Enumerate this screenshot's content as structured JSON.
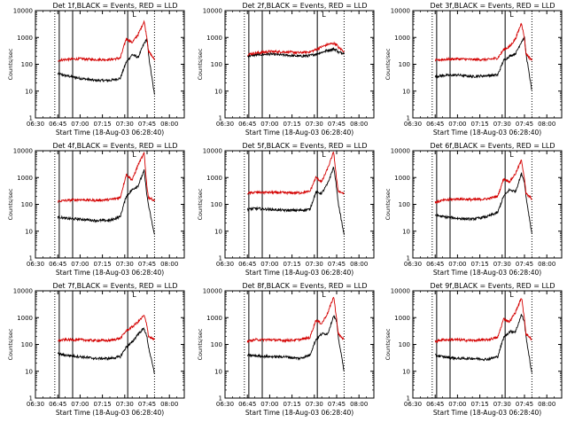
{
  "figure": {
    "background": "#ffffff"
  },
  "colors": {
    "events": "#000000",
    "lld": "#d40000",
    "axes": "#000000"
  },
  "chart_data": [
    {
      "type": "line",
      "title": "Det 1f,BLACK = Events, RED = LLD",
      "xlabel": "Start Time (18-Aug-03 06:28:40)",
      "ylabel": "Counts/sec",
      "yscale": "log",
      "ylim": [
        1,
        10000
      ],
      "xlim": [
        "06:30",
        "08:10"
      ],
      "x_tick_labels": [
        "06:30",
        "06:45",
        "07:00",
        "07:15",
        "07:30",
        "07:45",
        "08:00"
      ],
      "y_tick_labels": [
        "1",
        "10",
        "100",
        "1000",
        "10000"
      ],
      "marker_label": "L",
      "x": [
        "06:45",
        "06:50",
        "07:00",
        "07:10",
        "07:20",
        "07:27",
        "07:31",
        "07:35",
        "07:39",
        "07:43",
        "07:45",
        "07:46",
        "07:50"
      ],
      "series": [
        {
          "name": "Events",
          "color": "#000000",
          "values": [
            45,
            38,
            30,
            25,
            25,
            30,
            120,
            230,
            180,
            600,
            900,
            220,
            7
          ]
        },
        {
          "name": "LLD",
          "color": "#d40000",
          "values": [
            140,
            150,
            160,
            150,
            150,
            170,
            900,
            650,
            1300,
            4000,
            900,
            300,
            150
          ]
        }
      ]
    },
    {
      "type": "line",
      "title": "Det 2f,BLACK = Events, RED = LLD",
      "xlabel": "Start Time (18-Aug-03 06:28:40)",
      "ylabel": "Counts/sec",
      "yscale": "log",
      "ylim": [
        1,
        10000
      ],
      "xlim": [
        "06:30",
        "08:10"
      ],
      "x_tick_labels": [
        "06:30",
        "06:45",
        "07:00",
        "07:15",
        "07:30",
        "07:45",
        "08:00"
      ],
      "y_tick_labels": [
        "1",
        "10",
        "100",
        "1000",
        "10000"
      ],
      "marker_label": "L",
      "x": [
        "06:45",
        "06:50",
        "07:00",
        "07:10",
        "07:20",
        "07:27",
        "07:31",
        "07:35",
        "07:39",
        "07:43",
        "07:45",
        "07:46",
        "07:50"
      ],
      "series": [
        {
          "name": "Events",
          "color": "#000000",
          "values": [
            200,
            220,
            240,
            220,
            200,
            210,
            240,
            280,
            330,
            370,
            340,
            280,
            260
          ]
        },
        {
          "name": "LLD",
          "color": "#d40000",
          "values": [
            230,
            260,
            300,
            290,
            270,
            290,
            350,
            450,
            550,
            600,
            550,
            430,
            300
          ]
        }
      ]
    },
    {
      "type": "line",
      "title": "Det 3f,BLACK = Events, RED = LLD",
      "xlabel": "Start Time (18-Aug-03 06:28:40)",
      "ylabel": "Counts/sec",
      "yscale": "log",
      "ylim": [
        1,
        10000
      ],
      "xlim": [
        "06:30",
        "08:10"
      ],
      "x_tick_labels": [
        "06:30",
        "06:45",
        "07:00",
        "07:15",
        "07:30",
        "07:45",
        "08:00"
      ],
      "y_tick_labels": [
        "1",
        "10",
        "100",
        "1000",
        "10000"
      ],
      "marker_label": "L",
      "x": [
        "06:45",
        "06:50",
        "07:00",
        "07:10",
        "07:20",
        "07:27",
        "07:31",
        "07:35",
        "07:39",
        "07:43",
        "07:45",
        "07:46",
        "07:50"
      ],
      "series": [
        {
          "name": "Events",
          "color": "#000000",
          "values": [
            35,
            38,
            40,
            35,
            38,
            40,
            140,
            200,
            250,
            700,
            1000,
            250,
            10
          ]
        },
        {
          "name": "LLD",
          "color": "#d40000",
          "values": [
            140,
            150,
            160,
            150,
            150,
            170,
            350,
            450,
            900,
            3500,
            900,
            250,
            140
          ]
        }
      ]
    },
    {
      "type": "line",
      "title": "Det 4f,BLACK = Events, RED = LLD",
      "xlabel": "Start Time (18-Aug-03 06:28:40)",
      "ylabel": "Counts/sec",
      "yscale": "log",
      "ylim": [
        1,
        10000
      ],
      "xlim": [
        "06:30",
        "08:10"
      ],
      "x_tick_labels": [
        "06:30",
        "06:45",
        "07:00",
        "07:15",
        "07:30",
        "07:45",
        "08:00"
      ],
      "y_tick_labels": [
        "1",
        "10",
        "100",
        "1000",
        "10000"
      ],
      "marker_label": "L",
      "x": [
        "06:45",
        "06:50",
        "07:00",
        "07:10",
        "07:20",
        "07:27",
        "07:31",
        "07:35",
        "07:39",
        "07:43",
        "07:45",
        "07:46",
        "07:50"
      ],
      "series": [
        {
          "name": "Events",
          "color": "#000000",
          "values": [
            35,
            30,
            28,
            25,
            25,
            35,
            200,
            350,
            500,
            1800,
            200,
            90,
            7
          ]
        },
        {
          "name": "LLD",
          "color": "#d40000",
          "values": [
            130,
            140,
            150,
            140,
            150,
            180,
            1300,
            800,
            3000,
            8000,
            400,
            180,
            140
          ]
        }
      ]
    },
    {
      "type": "line",
      "title": "Det 5f,BLACK = Events, RED = LLD",
      "xlabel": "Start Time (18-Aug-03 06:28:40)",
      "ylabel": "Counts/sec",
      "yscale": "log",
      "ylim": [
        1,
        10000
      ],
      "xlim": [
        "06:30",
        "08:10"
      ],
      "x_tick_labels": [
        "06:30",
        "06:45",
        "07:00",
        "07:15",
        "07:30",
        "07:45",
        "08:00"
      ],
      "y_tick_labels": [
        "1",
        "10",
        "100",
        "1000",
        "10000"
      ],
      "marker_label": "L",
      "x": [
        "06:45",
        "06:50",
        "07:00",
        "07:10",
        "07:20",
        "07:27",
        "07:31",
        "07:35",
        "07:39",
        "07:43",
        "07:45",
        "07:46",
        "07:50"
      ],
      "series": [
        {
          "name": "Events",
          "color": "#000000",
          "values": [
            65,
            70,
            65,
            60,
            60,
            65,
            280,
            260,
            600,
            2500,
            400,
            120,
            7
          ]
        },
        {
          "name": "LLD",
          "color": "#d40000",
          "values": [
            260,
            280,
            280,
            270,
            270,
            300,
            1000,
            700,
            2200,
            9000,
            800,
            320,
            250
          ]
        }
      ]
    },
    {
      "type": "line",
      "title": "Det 6f,BLACK = Events, RED = LLD",
      "xlabel": "Start Time (18-Aug-03 06:28:40)",
      "ylabel": "Counts/sec",
      "yscale": "log",
      "ylim": [
        1,
        10000
      ],
      "xlim": [
        "06:30",
        "08:10"
      ],
      "x_tick_labels": [
        "06:30",
        "06:45",
        "07:00",
        "07:15",
        "07:30",
        "07:45",
        "08:00"
      ],
      "y_tick_labels": [
        "1",
        "10",
        "100",
        "1000",
        "10000"
      ],
      "marker_label": "L",
      "x": [
        "06:45",
        "06:50",
        "07:00",
        "07:10",
        "07:20",
        "07:27",
        "07:31",
        "07:35",
        "07:39",
        "07:43",
        "07:45",
        "07:46",
        "07:50"
      ],
      "series": [
        {
          "name": "Events",
          "color": "#000000",
          "values": [
            40,
            35,
            30,
            28,
            35,
            50,
            200,
            350,
            300,
            1400,
            700,
            200,
            8
          ]
        },
        {
          "name": "LLD",
          "color": "#d40000",
          "values": [
            120,
            140,
            160,
            150,
            160,
            200,
            900,
            700,
            1400,
            4500,
            900,
            250,
            160
          ]
        }
      ]
    },
    {
      "type": "line",
      "title": "Det 7f,BLACK = Events, RED = LLD",
      "xlabel": "Start Time (18-Aug-03 06:28:40)",
      "ylabel": "Counts/sec",
      "yscale": "log",
      "ylim": [
        1,
        10000
      ],
      "xlim": [
        "06:30",
        "08:10"
      ],
      "x_tick_labels": [
        "06:30",
        "06:45",
        "07:00",
        "07:15",
        "07:30",
        "07:45",
        "08:00"
      ],
      "y_tick_labels": [
        "1",
        "10",
        "100",
        "1000",
        "10000"
      ],
      "marker_label": "L",
      "x": [
        "06:45",
        "06:50",
        "07:00",
        "07:10",
        "07:20",
        "07:27",
        "07:31",
        "07:35",
        "07:39",
        "07:43",
        "07:45",
        "07:46",
        "07:50"
      ],
      "series": [
        {
          "name": "Events",
          "color": "#000000",
          "values": [
            45,
            40,
            35,
            30,
            30,
            35,
            80,
            120,
            250,
            400,
            180,
            80,
            8
          ]
        },
        {
          "name": "LLD",
          "color": "#d40000",
          "values": [
            140,
            150,
            150,
            140,
            140,
            170,
            320,
            450,
            700,
            1200,
            500,
            200,
            150
          ]
        }
      ]
    },
    {
      "type": "line",
      "title": "Det 8f,BLACK = Events, RED = LLD",
      "xlabel": "Start Time (18-Aug-03 06:28:40)",
      "ylabel": "Counts/sec",
      "yscale": "log",
      "ylim": [
        1,
        10000
      ],
      "xlim": [
        "06:30",
        "08:10"
      ],
      "x_tick_labels": [
        "06:30",
        "06:45",
        "07:00",
        "07:15",
        "07:30",
        "07:45",
        "08:00"
      ],
      "y_tick_labels": [
        "1",
        "10",
        "100",
        "1000",
        "10000"
      ],
      "marker_label": "L",
      "x": [
        "06:45",
        "06:50",
        "07:00",
        "07:10",
        "07:20",
        "07:27",
        "07:31",
        "07:35",
        "07:39",
        "07:43",
        "07:45",
        "07:46",
        "07:50"
      ],
      "series": [
        {
          "name": "Events",
          "color": "#000000",
          "values": [
            40,
            38,
            35,
            35,
            30,
            40,
            150,
            250,
            250,
            1200,
            700,
            200,
            10
          ]
        },
        {
          "name": "LLD",
          "color": "#d40000",
          "values": [
            130,
            150,
            150,
            140,
            150,
            180,
            800,
            600,
            1500,
            6000,
            900,
            250,
            150
          ]
        }
      ]
    },
    {
      "type": "line",
      "title": "Det 9f,BLACK = Events, RED = LLD",
      "xlabel": "Start Time (18-Aug-03 06:28:40)",
      "ylabel": "Counts/sec",
      "yscale": "log",
      "ylim": [
        1,
        10000
      ],
      "xlim": [
        "06:30",
        "08:10"
      ],
      "x_tick_labels": [
        "06:30",
        "06:45",
        "07:00",
        "07:15",
        "07:30",
        "07:45",
        "08:00"
      ],
      "y_tick_labels": [
        "1",
        "10",
        "100",
        "1000",
        "10000"
      ],
      "marker_label": "L",
      "x": [
        "06:45",
        "06:50",
        "07:00",
        "07:10",
        "07:20",
        "07:27",
        "07:31",
        "07:35",
        "07:39",
        "07:43",
        "07:45",
        "07:46",
        "07:50"
      ],
      "series": [
        {
          "name": "Events",
          "color": "#000000",
          "values": [
            40,
            35,
            30,
            30,
            28,
            35,
            180,
            300,
            300,
            1300,
            700,
            200,
            8
          ]
        },
        {
          "name": "LLD",
          "color": "#d40000",
          "values": [
            130,
            150,
            150,
            140,
            150,
            180,
            900,
            700,
            1600,
            5500,
            900,
            250,
            150
          ]
        }
      ]
    }
  ]
}
